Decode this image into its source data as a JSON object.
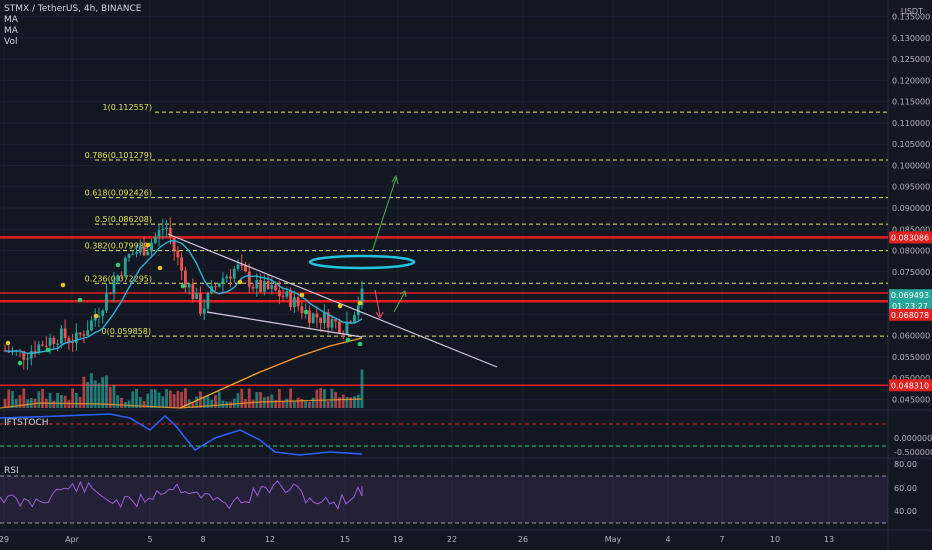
{
  "header": {
    "title": "STMX / TetherUS, 4h, BINANCE",
    "indicators": [
      "MA",
      "MA",
      "Vol"
    ],
    "currency": "USDT"
  },
  "panes": {
    "stoch_label": "IFTSTOCH",
    "rsi_label": "RSI"
  },
  "price_axis": {
    "ticks": [
      "0.135000",
      "0.130000",
      "0.125000",
      "0.120000",
      "0.115000",
      "0.110000",
      "0.105000",
      "0.100000",
      "0.095000",
      "0.090000",
      "0.085000",
      "0.080000",
      "0.075000",
      "0.070000",
      "0.065000",
      "0.060000",
      "0.055000",
      "0.050000",
      "0.045000"
    ],
    "stoch_ticks": [
      "0.000000",
      "-0.500000"
    ],
    "rsi_ticks": [
      "80.00",
      "60.00",
      "40.00"
    ]
  },
  "price_badges": {
    "resistance": "0.083086",
    "current": "0.069493",
    "countdown": "01:23:27",
    "support_mid": "0.068078",
    "support_low": "0.048310"
  },
  "time_axis": [
    "29",
    "Apr",
    "5",
    "8",
    "12",
    "15",
    "19",
    "22",
    "26",
    "May",
    "4",
    "7",
    "10",
    "13"
  ],
  "fib_levels": [
    {
      "label": "1(0.112557)",
      "value": 0.112557
    },
    {
      "label": "0.786(0.101279)",
      "value": 0.101279
    },
    {
      "label": "0.618(0.092426)",
      "value": 0.092426
    },
    {
      "label": "0.5(0.086208)",
      "value": 0.086208
    },
    {
      "label": "0.382(0.079989)",
      "value": 0.079989
    },
    {
      "label": "0.236(0.072295)",
      "value": 0.072295
    },
    {
      "label": "0(0.059858)",
      "value": 0.059858
    }
  ],
  "colors": {
    "background": "#131722",
    "up": "#26a69a",
    "down": "#ef5350",
    "fib": "#e3e35a",
    "horizontal_level": "#e01f1f",
    "ma_fast": "#2ab0d8",
    "ma_slow": "#f39c2a",
    "rsi": "#9c5fd6",
    "stoch": "#2962ff",
    "trendline": "#d6c8e0",
    "target_ellipse": "#22c3de"
  },
  "chart_data": {
    "type": "candlestick",
    "symbol": "STMX / TetherUS",
    "interval": "4h",
    "exchange": "BINANCE",
    "y_range": [
      0.0425,
      0.1375
    ],
    "horizontal_levels": [
      0.083086,
      0.068078,
      0.04831
    ],
    "last_price": 0.069493,
    "close_path": [
      {
        "x": "Mar 28",
        "y": 0.0565
      },
      {
        "x": "Mar 29",
        "y": 0.0555
      },
      {
        "x": "Mar 30",
        "y": 0.058
      },
      {
        "x": "Mar 31",
        "y": 0.06
      },
      {
        "x": "Apr 1",
        "y": 0.059
      },
      {
        "x": "Apr 2",
        "y": 0.064
      },
      {
        "x": "Apr 3",
        "y": 0.072
      },
      {
        "x": "Apr 4",
        "y": 0.079
      },
      {
        "x": "Apr 5",
        "y": 0.081
      },
      {
        "x": "Apr 6",
        "y": 0.086
      },
      {
        "x": "Apr 7",
        "y": 0.074
      },
      {
        "x": "Apr 8",
        "y": 0.066
      },
      {
        "x": "Apr 9",
        "y": 0.073
      },
      {
        "x": "Apr 10",
        "y": 0.076
      },
      {
        "x": "Apr 11",
        "y": 0.0715
      },
      {
        "x": "Apr 12",
        "y": 0.0705
      },
      {
        "x": "Apr 13",
        "y": 0.0685
      },
      {
        "x": "Apr 14",
        "y": 0.065
      },
      {
        "x": "Apr 15",
        "y": 0.064
      },
      {
        "x": "Apr 16",
        "y": 0.062
      },
      {
        "x": "Apr 17",
        "y": 0.0695
      }
    ],
    "rsi_range": [
      30,
      90
    ]
  }
}
